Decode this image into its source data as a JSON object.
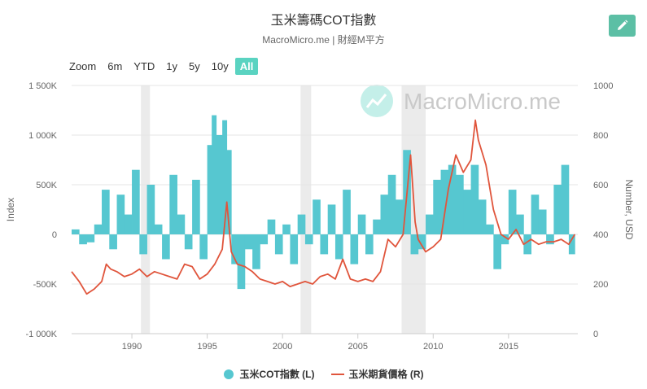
{
  "title": "玉米籌碼COT指數",
  "subtitle": "MacroMicro.me | 財經M平方",
  "edit_icon": "pencil-icon",
  "watermark": "MacroMicro.me",
  "zoom": {
    "label": "Zoom",
    "buttons": [
      "6m",
      "YTD",
      "1y",
      "5y",
      "10y",
      "All"
    ],
    "active": "All"
  },
  "colors": {
    "index_series": "#56c7d0",
    "price_series": "#e0553c",
    "edit_button": "#5cbfa5",
    "active_zoom": "#5ad3c1",
    "recession_band": "#ebebeb"
  },
  "chart_data": {
    "type": "bar+line",
    "title": "玉米籌碼COT指數",
    "subtitle": "MacroMicro.me | 財經M平方",
    "x_axis": {
      "ticks": [
        1990,
        1995,
        2000,
        2005,
        2010,
        2015
      ],
      "range": [
        1986.0,
        2019.6
      ]
    },
    "y_left": {
      "label": "Index",
      "range": [
        -1000,
        1500
      ],
      "ticks": [
        -1000,
        -500,
        0,
        500,
        1000,
        1500
      ],
      "tick_labels": [
        "-1 000K",
        "-500K",
        "0",
        "500K",
        "1 000K",
        "1 500K"
      ]
    },
    "y_right": {
      "label": "Number, USD",
      "range": [
        0,
        1000
      ],
      "ticks": [
        0,
        200,
        400,
        600,
        800,
        1000
      ],
      "tick_labels": [
        "0",
        "200",
        "400",
        "600",
        "800",
        "1000"
      ]
    },
    "shaded_periods": [
      [
        1990.6,
        1991.2
      ],
      [
        2001.2,
        2001.9
      ],
      [
        2007.9,
        2009.5
      ]
    ],
    "series": [
      {
        "name": "玉米COT指數 (L)",
        "type": "bar",
        "axis": "left",
        "unit": "K",
        "x": [
          1986.0,
          1986.5,
          1987.0,
          1987.5,
          1988.0,
          1988.5,
          1989.0,
          1989.5,
          1990.0,
          1990.5,
          1991.0,
          1991.5,
          1992.0,
          1992.5,
          1993.0,
          1993.5,
          1994.0,
          1994.5,
          1995.0,
          1995.3,
          1995.6,
          1996.0,
          1996.3,
          1996.6,
          1997.0,
          1997.5,
          1998.0,
          1998.5,
          1999.0,
          1999.5,
          2000.0,
          2000.5,
          2001.0,
          2001.5,
          2002.0,
          2002.5,
          2003.0,
          2003.5,
          2004.0,
          2004.5,
          2005.0,
          2005.5,
          2006.0,
          2006.5,
          2007.0,
          2007.5,
          2008.0,
          2008.5,
          2009.0,
          2009.5,
          2010.0,
          2010.5,
          2011.0,
          2011.5,
          2012.0,
          2012.5,
          2013.0,
          2013.5,
          2014.0,
          2014.5,
          2015.0,
          2015.5,
          2016.0,
          2016.5,
          2017.0,
          2017.5,
          2018.0,
          2018.5,
          2019.0,
          2019.4
        ],
        "values": [
          50,
          -100,
          -80,
          100,
          450,
          -150,
          400,
          200,
          650,
          -200,
          500,
          100,
          -250,
          600,
          200,
          -150,
          550,
          -250,
          900,
          1200,
          1000,
          1150,
          850,
          -300,
          -550,
          -150,
          -350,
          -100,
          150,
          -200,
          100,
          -300,
          200,
          -100,
          350,
          -200,
          300,
          -250,
          450,
          -300,
          200,
          -200,
          150,
          400,
          600,
          350,
          850,
          -200,
          -150,
          200,
          550,
          650,
          700,
          600,
          450,
          700,
          350,
          100,
          -350,
          -100,
          450,
          200,
          -200,
          400,
          250,
          -100,
          500,
          700,
          -200,
          -350
        ]
      },
      {
        "name": "玉米期貨價格 (R)",
        "type": "line",
        "axis": "right",
        "unit": "USD",
        "x": [
          1986.0,
          1986.5,
          1987.0,
          1987.5,
          1988.0,
          1988.3,
          1988.6,
          1989.0,
          1989.5,
          1990.0,
          1990.5,
          1991.0,
          1991.5,
          1992.0,
          1992.5,
          1993.0,
          1993.5,
          1994.0,
          1994.5,
          1995.0,
          1995.5,
          1996.0,
          1996.3,
          1996.6,
          1997.0,
          1997.5,
          1998.0,
          1998.5,
          1999.0,
          1999.5,
          2000.0,
          2000.5,
          2001.0,
          2001.5,
          2002.0,
          2002.5,
          2003.0,
          2003.5,
          2004.0,
          2004.5,
          2005.0,
          2005.5,
          2006.0,
          2006.5,
          2007.0,
          2007.5,
          2008.0,
          2008.5,
          2008.8,
          2009.0,
          2009.5,
          2010.0,
          2010.5,
          2011.0,
          2011.5,
          2012.0,
          2012.5,
          2012.8,
          2013.0,
          2013.5,
          2014.0,
          2014.5,
          2015.0,
          2015.5,
          2016.0,
          2016.5,
          2017.0,
          2017.5,
          2018.0,
          2018.5,
          2019.0,
          2019.4
        ],
        "values": [
          250,
          210,
          160,
          180,
          210,
          280,
          260,
          250,
          230,
          240,
          260,
          230,
          250,
          240,
          230,
          220,
          280,
          270,
          220,
          240,
          280,
          340,
          530,
          330,
          280,
          270,
          250,
          220,
          210,
          200,
          210,
          190,
          200,
          210,
          200,
          230,
          240,
          220,
          300,
          220,
          210,
          220,
          210,
          250,
          380,
          350,
          400,
          720,
          450,
          380,
          330,
          350,
          380,
          580,
          720,
          650,
          700,
          860,
          780,
          680,
          500,
          400,
          380,
          420,
          360,
          380,
          360,
          370,
          370,
          380,
          360,
          400
        ]
      }
    ]
  }
}
